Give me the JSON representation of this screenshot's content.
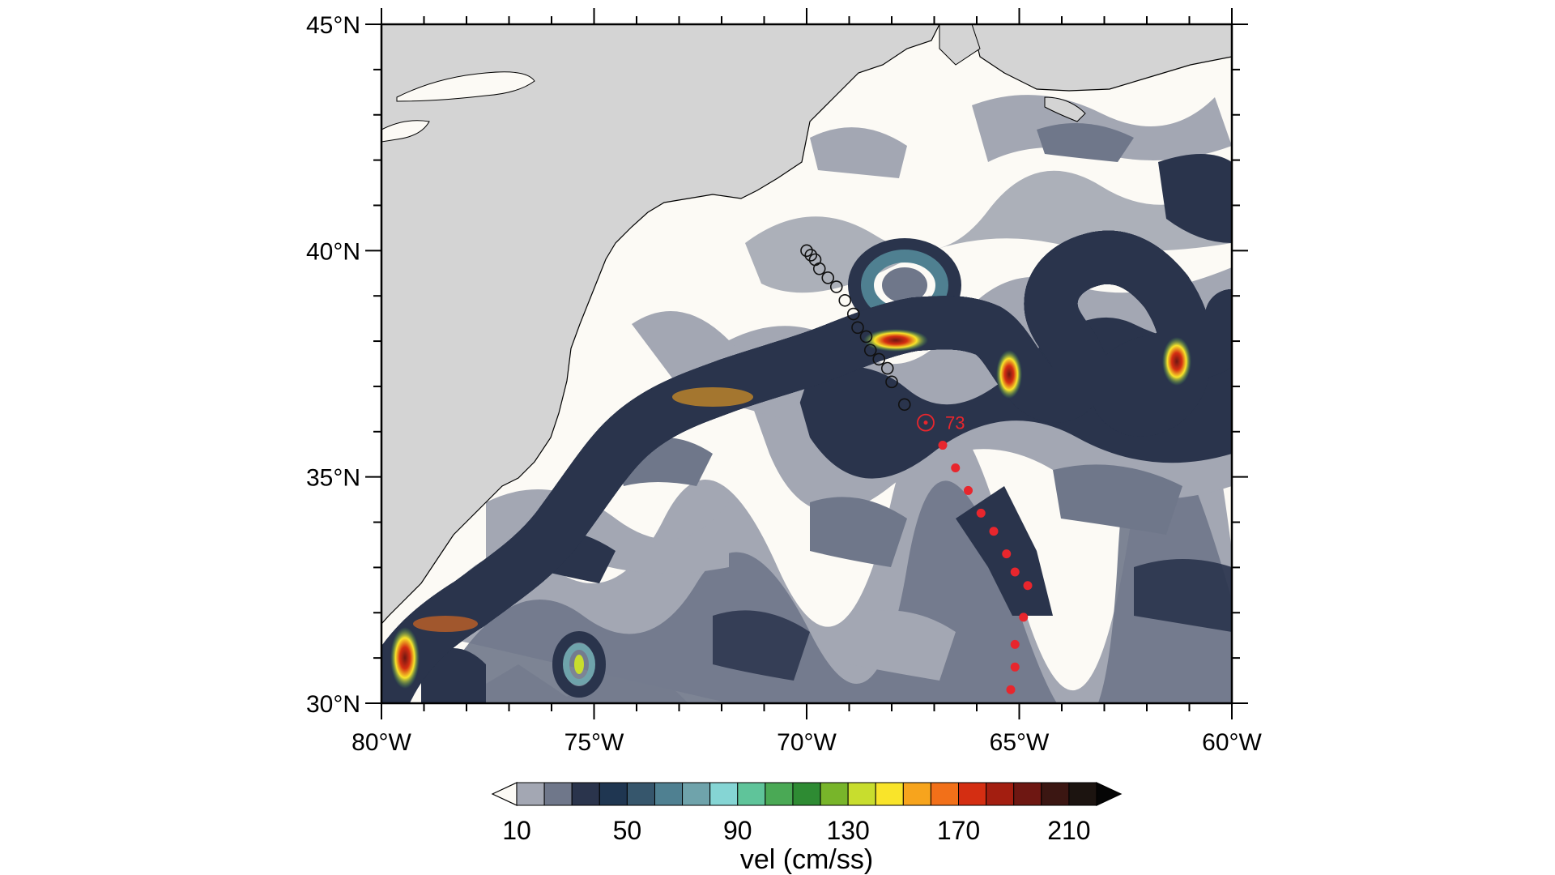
{
  "map": {
    "lon_range": [
      -80,
      -60
    ],
    "lat_range": [
      30,
      45
    ],
    "colors": {
      "land": "#d4d4d4",
      "ocean_low": "#fcfaf5",
      "track_future": "#e8262d",
      "track_past": "#111111"
    },
    "lon_labels": [
      {
        "lon": -80,
        "label": "80°W"
      },
      {
        "lon": -75,
        "label": "75°W"
      },
      {
        "lon": -70,
        "label": "70°W"
      },
      {
        "lon": -65,
        "label": "65°W"
      },
      {
        "lon": -60,
        "label": "60°W"
      }
    ],
    "lat_labels": [
      {
        "lat": 45,
        "label": "45°N"
      },
      {
        "lat": 40,
        "label": "40°N"
      },
      {
        "lat": 35,
        "label": "35°N"
      },
      {
        "lat": 30,
        "label": "30°N"
      }
    ],
    "storm": {
      "current_label": "73",
      "current": [
        -67.2,
        36.2
      ],
      "past_track": [
        [
          -70.0,
          40.0
        ],
        [
          -69.9,
          39.9
        ],
        [
          -69.8,
          39.8
        ],
        [
          -69.7,
          39.6
        ],
        [
          -69.5,
          39.4
        ],
        [
          -69.3,
          39.2
        ],
        [
          -69.1,
          38.9
        ],
        [
          -68.9,
          38.6
        ],
        [
          -68.8,
          38.3
        ],
        [
          -68.6,
          38.1
        ],
        [
          -68.5,
          37.8
        ],
        [
          -68.3,
          37.6
        ],
        [
          -68.1,
          37.4
        ],
        [
          -68.0,
          37.1
        ],
        [
          -67.7,
          36.6
        ]
      ],
      "future_track": [
        [
          -66.8,
          35.7
        ],
        [
          -66.5,
          35.2
        ],
        [
          -66.2,
          34.7
        ],
        [
          -65.9,
          34.2
        ],
        [
          -65.6,
          33.8
        ],
        [
          -65.3,
          33.3
        ],
        [
          -65.1,
          32.9
        ],
        [
          -64.8,
          32.6
        ],
        [
          -64.9,
          31.9
        ],
        [
          -65.1,
          31.3
        ],
        [
          -65.1,
          30.8
        ],
        [
          -65.2,
          30.3
        ]
      ]
    }
  },
  "colorbar": {
    "title": "vel (cm/ss)",
    "labels": [
      "10",
      "50",
      "90",
      "130",
      "170",
      "210"
    ],
    "label_positions": [
      1,
      5,
      9,
      13,
      17,
      21
    ],
    "colors": [
      "#fcfaf5",
      "#a3a7b3",
      "#6f778a",
      "#2a344c",
      "#1f3651",
      "#36566c",
      "#4f8091",
      "#6fa3ab",
      "#85d5d4",
      "#5fc49a",
      "#4aa955",
      "#2e8b33",
      "#78b52a",
      "#c8dd2e",
      "#f9e42a",
      "#f7a41d",
      "#f27019",
      "#d42e12",
      "#a31e10",
      "#6e1712",
      "#3b1612",
      "#1c1410",
      "#050505"
    ]
  }
}
